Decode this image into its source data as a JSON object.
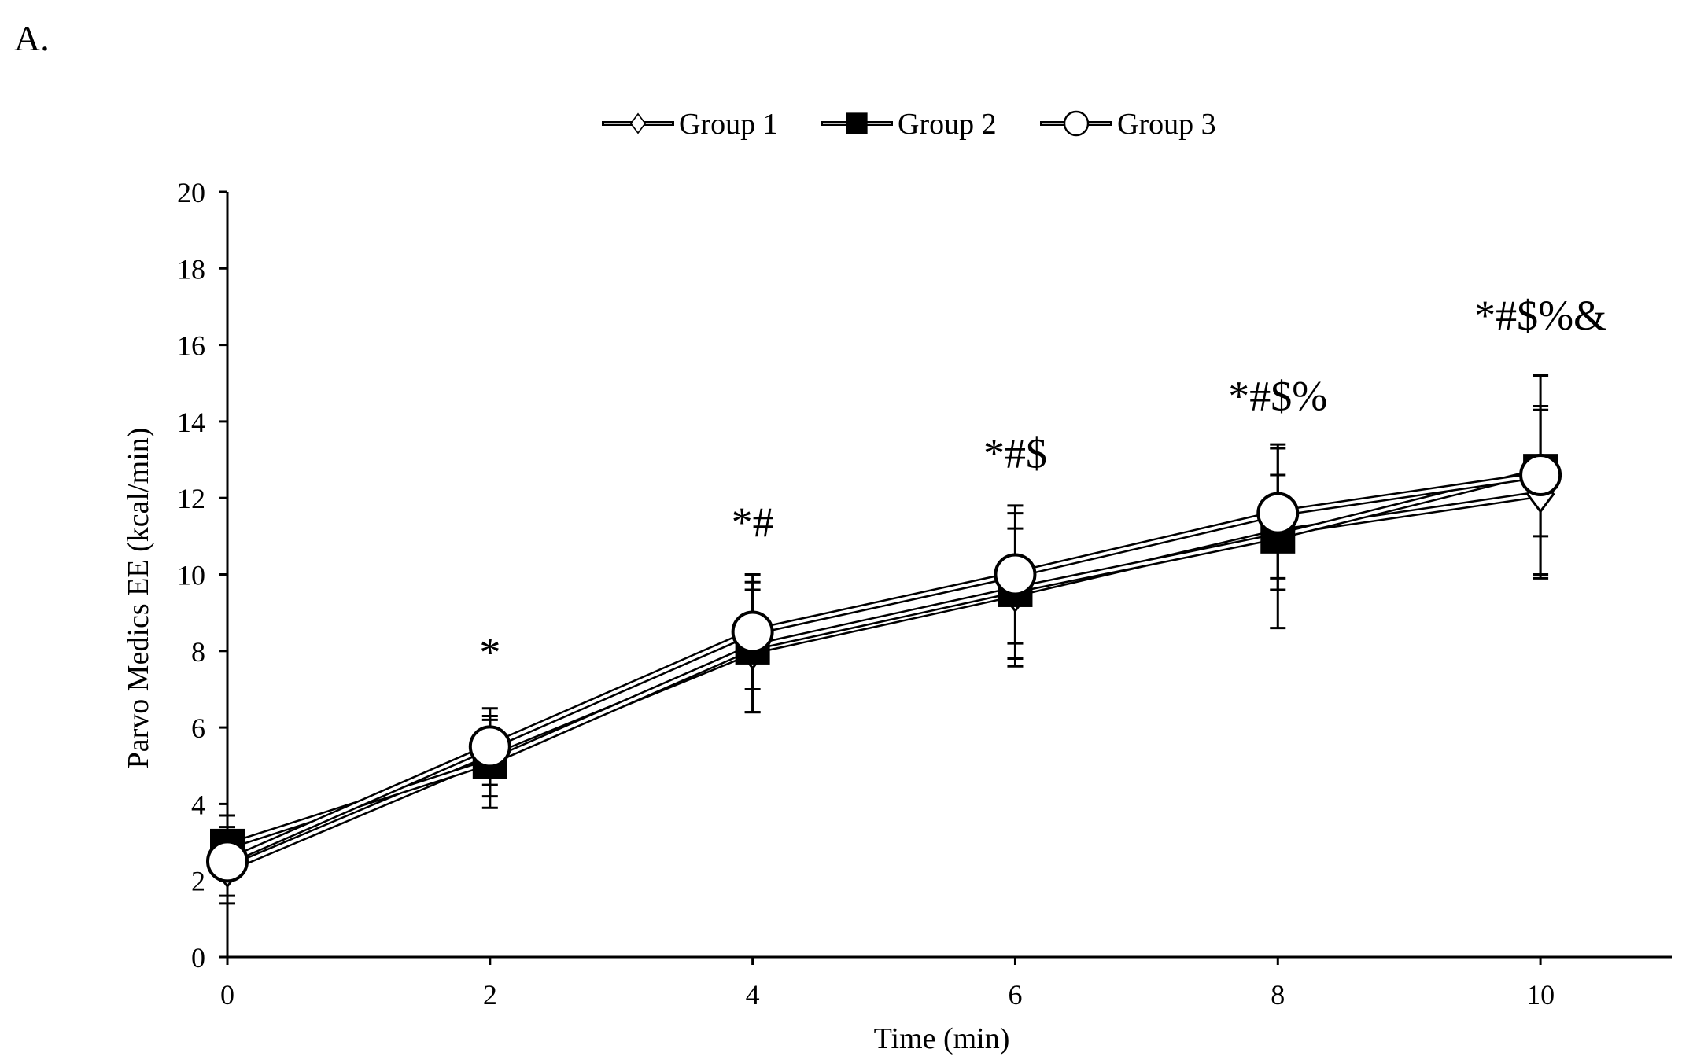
{
  "panel_label": "A.",
  "chart_data": {
    "type": "line",
    "title": "",
    "xlabel": "Time (min)",
    "ylabel": "Parvo Medics EE (kcal/min)",
    "xlim": [
      0,
      11
    ],
    "ylim": [
      0,
      20
    ],
    "xticks": [
      0,
      2,
      4,
      6,
      8,
      10
    ],
    "yticks": [
      0,
      2,
      4,
      6,
      8,
      10,
      12,
      14,
      16,
      18,
      20
    ],
    "grid": false,
    "legend_position": "top-center",
    "x": [
      0,
      2,
      4,
      6,
      8,
      10
    ],
    "series": [
      {
        "name": "Group 1",
        "marker": "diamond-open",
        "values": [
          2.3,
          5.2,
          8.0,
          9.5,
          11.1,
          12.1
        ],
        "error": [
          0.9,
          1.0,
          1.6,
          1.7,
          1.5,
          2.2
        ]
      },
      {
        "name": "Group 2",
        "marker": "square-filled",
        "values": [
          2.9,
          5.1,
          8.1,
          9.6,
          11.0,
          12.7
        ],
        "error": [
          0.8,
          1.2,
          1.7,
          2.0,
          2.4,
          1.7
        ]
      },
      {
        "name": "Group 3",
        "marker": "circle-open",
        "values": [
          2.5,
          5.5,
          8.5,
          10.0,
          11.6,
          12.6
        ],
        "error": [
          0.9,
          1.0,
          1.5,
          1.8,
          1.7,
          2.6
        ]
      }
    ],
    "annotations": [
      {
        "x": 2,
        "y": 7.6,
        "text": "*"
      },
      {
        "x": 4,
        "y": 11.0,
        "text": "*#"
      },
      {
        "x": 6,
        "y": 12.8,
        "text": "*#$"
      },
      {
        "x": 8,
        "y": 14.3,
        "text": "*#$%"
      },
      {
        "x": 10,
        "y": 16.4,
        "text": "*#$%&"
      }
    ]
  }
}
